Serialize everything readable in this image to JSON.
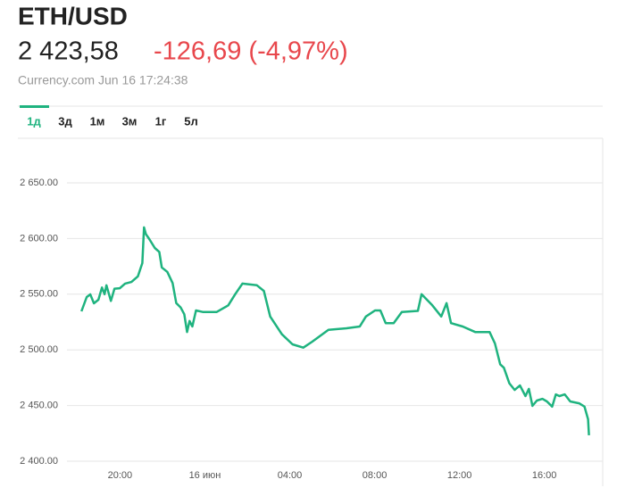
{
  "header": {
    "title": "ETH/USD",
    "price": "2 423,58",
    "change": "-126,69 (-4,97%)",
    "source": "Currency.com Jun 16 17:24:38"
  },
  "tabs": [
    "1д",
    "3д",
    "1м",
    "3м",
    "1г",
    "5л"
  ],
  "chart_data": {
    "type": "line",
    "color": "#1fb37f",
    "grid": true,
    "xlim": [
      -6.5,
      18.75
    ],
    "xticks": [
      {
        "value": -4,
        "label": "20:00"
      },
      {
        "value": 0,
        "label": "16 июн"
      },
      {
        "value": 4,
        "label": "04:00"
      },
      {
        "value": 8,
        "label": "08:00"
      },
      {
        "value": 12,
        "label": "12:00"
      },
      {
        "value": 16,
        "label": "16:00"
      }
    ],
    "ylim": [
      2400,
      2650
    ],
    "yticks": [
      {
        "value": 2400,
        "label": "2 400.00"
      },
      {
        "value": 2450,
        "label": "2 450.00"
      },
      {
        "value": 2500,
        "label": "2 500.00"
      },
      {
        "value": 2550,
        "label": "2 550.00"
      },
      {
        "value": 2600,
        "label": "2 600.00"
      },
      {
        "value": 2650,
        "label": "2 650.00"
      }
    ],
    "x": [
      -5.82,
      -5.57,
      -5.4,
      -5.23,
      -5.02,
      -4.85,
      -4.73,
      -4.64,
      -4.43,
      -4.26,
      -4.01,
      -3.76,
      -3.46,
      -3.16,
      -2.95,
      -2.87,
      -2.78,
      -2.62,
      -2.36,
      -2.15,
      -2.03,
      -1.77,
      -1.52,
      -1.35,
      -1.14,
      -0.97,
      -0.84,
      -0.72,
      -0.59,
      -0.42,
      -0.08,
      0.55,
      1.1,
      1.43,
      1.77,
      2.45,
      2.78,
      3.08,
      3.63,
      4.13,
      4.64,
      5.06,
      5.82,
      6.67,
      7.3,
      7.59,
      8.02,
      8.27,
      8.52,
      8.9,
      9.28,
      10.04,
      10.21,
      10.72,
      11.14,
      11.39,
      11.6,
      12.15,
      12.74,
      13.42,
      13.67,
      13.92,
      14.09,
      14.35,
      14.6,
      14.85,
      15.11,
      15.27,
      15.44,
      15.65,
      15.91,
      16.12,
      16.37,
      16.54,
      16.71,
      16.96,
      17.22,
      17.64,
      17.89,
      18.06,
      18.1
    ],
    "series": [
      {
        "values": [
          2534.6,
          2547.4,
          2549.8,
          2541.8,
          2545,
          2556,
          2550,
          2558,
          2544,
          2555,
          2555.4,
          2559.5,
          2561,
          2566,
          2578,
          2610,
          2604,
          2599.5,
          2591.5,
          2588,
          2574,
          2570,
          2560,
          2542,
          2538,
          2532,
          2516,
          2526,
          2521,
          2535.4,
          2534,
          2534,
          2540,
          2550,
          2559.5,
          2558,
          2553,
          2530,
          2514,
          2505,
          2502,
          2507.4,
          2518,
          2519.4,
          2521,
          2530,
          2535.4,
          2535.4,
          2524,
          2524,
          2534,
          2535,
          2550,
          2540,
          2530,
          2542,
          2524,
          2521,
          2516,
          2516,
          2505.8,
          2487,
          2484,
          2470,
          2464,
          2468,
          2458.5,
          2465,
          2449.7,
          2454.5,
          2456,
          2453.7,
          2449,
          2460,
          2458.5,
          2460,
          2453.7,
          2452,
          2449,
          2437.7,
          2423.3
        ]
      }
    ]
  }
}
